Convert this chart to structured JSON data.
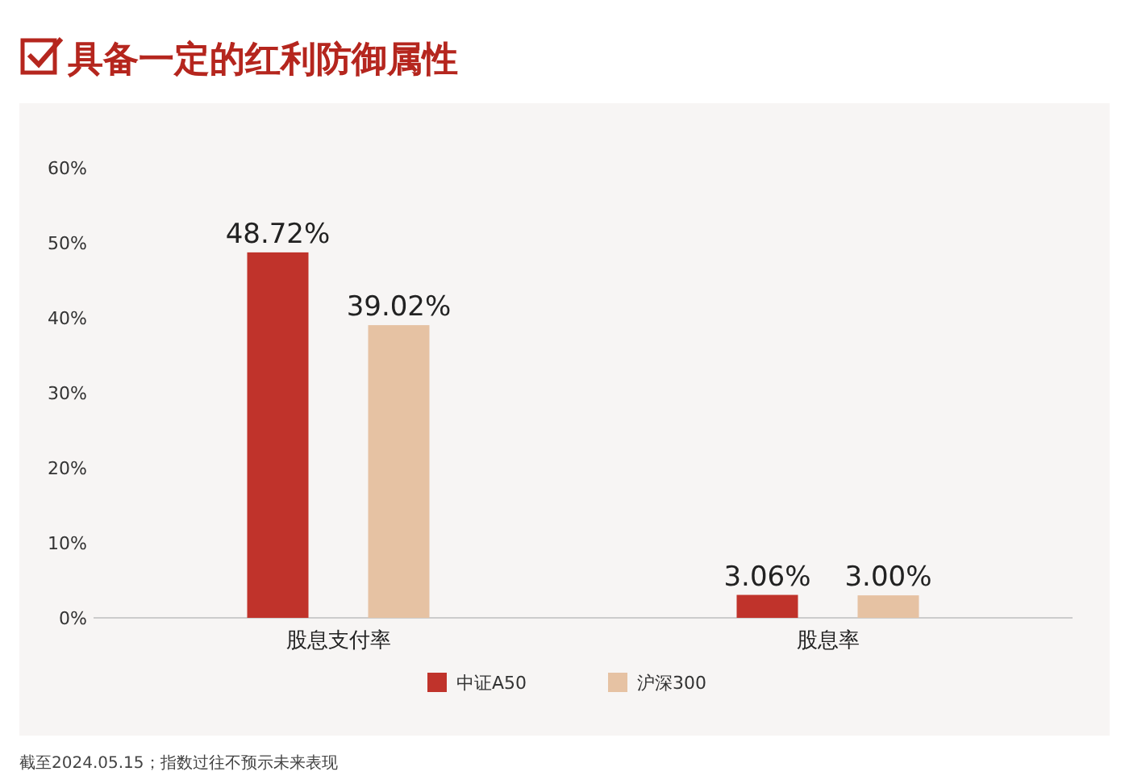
{
  "chart_data": {
    "type": "bar",
    "title": "具备一定的红利防御属性",
    "categories": [
      "股息支付率",
      "股息率"
    ],
    "series": [
      {
        "name": "中证A50",
        "color": "#c0332b",
        "values": [
          48.72,
          3.06
        ],
        "value_labels": [
          "48.72%",
          "3.06%"
        ]
      },
      {
        "name": "沪深300",
        "color": "#e6c2a3",
        "values": [
          39.02,
          3.0
        ],
        "value_labels": [
          "39.02%",
          "3.00%"
        ]
      }
    ],
    "ylim": [
      0,
      60
    ],
    "yticks": [
      {
        "value": 0,
        "label": "0%"
      },
      {
        "value": 10,
        "label": "10%"
      },
      {
        "value": 20,
        "label": "20%"
      },
      {
        "value": 30,
        "label": "30%"
      },
      {
        "value": 40,
        "label": "40%"
      },
      {
        "value": 50,
        "label": "50%"
      },
      {
        "value": 60,
        "label": "60%"
      }
    ],
    "grid": false,
    "legend": "bottom",
    "annotations": [
      "截至2024.05.15；指数过往不预示未来表现"
    ]
  }
}
